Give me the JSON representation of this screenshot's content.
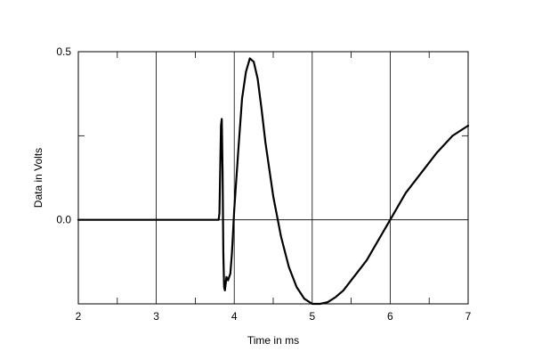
{
  "chart_data": {
    "type": "line",
    "title": "",
    "xlabel": "Time in ms",
    "ylabel": "Data in Volts",
    "xlim": [
      2,
      7
    ],
    "ylim": [
      -0.25,
      0.5
    ],
    "grid": true,
    "x_ticks": [
      2,
      3,
      4,
      5,
      6,
      7
    ],
    "x_tick_labels": [
      "2",
      "3",
      "4",
      "5",
      "6",
      "7"
    ],
    "y_ticks": [
      0.0,
      0.5
    ],
    "y_tick_labels": [
      "0.0",
      "0.5"
    ],
    "colors": {
      "line": "#000000",
      "grid": "#000000",
      "frame": "#000000"
    },
    "series": [
      {
        "x": [
          2.0,
          3.0,
          3.7,
          3.8,
          3.81,
          3.83,
          3.84,
          3.85,
          3.86,
          3.87,
          3.88,
          3.9,
          3.92,
          3.95,
          3.97,
          4.0,
          4.05,
          4.1,
          4.15,
          4.2,
          4.25,
          4.3,
          4.35,
          4.4,
          4.5,
          4.6,
          4.7,
          4.8,
          4.9,
          5.0,
          5.1,
          5.2,
          5.3,
          5.4,
          5.5,
          5.6,
          5.7,
          5.8,
          5.9,
          6.0,
          6.1,
          6.2,
          6.4,
          6.6,
          6.8,
          7.0
        ],
        "y": [
          0.0,
          0.0,
          0.0,
          0.0,
          0.02,
          0.28,
          0.3,
          0.15,
          -0.1,
          -0.2,
          -0.21,
          -0.17,
          -0.18,
          -0.16,
          -0.1,
          0.03,
          0.2,
          0.36,
          0.44,
          0.48,
          0.47,
          0.42,
          0.33,
          0.23,
          0.07,
          -0.05,
          -0.14,
          -0.2,
          -0.235,
          -0.25,
          -0.25,
          -0.245,
          -0.23,
          -0.21,
          -0.18,
          -0.15,
          -0.12,
          -0.08,
          -0.04,
          0.0,
          0.04,
          0.08,
          0.14,
          0.2,
          0.25,
          0.28
        ]
      }
    ]
  }
}
